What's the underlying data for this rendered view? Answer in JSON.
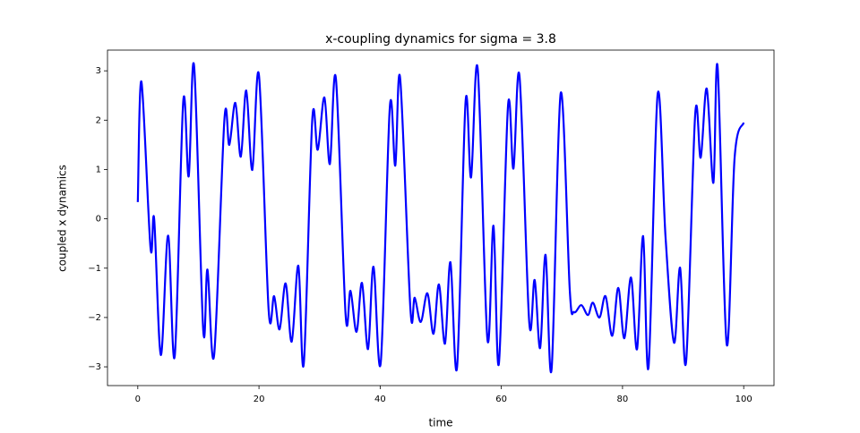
{
  "chart_data": {
    "type": "line",
    "title": "x-coupling dynamics for sigma = 3.8",
    "x_label": "time",
    "y_label": "coupled x dynamics",
    "xlim": [
      -5,
      105
    ],
    "ylim": [
      -3.38,
      3.42
    ],
    "xticks": [
      0,
      20,
      40,
      60,
      80,
      100
    ],
    "yticks": [
      {
        "value": -3,
        "label": "−3"
      },
      {
        "value": -2,
        "label": "−2"
      },
      {
        "value": -1,
        "label": "−1"
      },
      0,
      1,
      2,
      3
    ],
    "grid": false,
    "series": [
      {
        "color": "#0000ff",
        "x": [
          0,
          0.6,
          2.1,
          2.7,
          3.8,
          5.0,
          6.1,
          7.5,
          8.4,
          9.3,
          10.8,
          11.5,
          12.6,
          14.3,
          15.1,
          16.1,
          17.0,
          17.9,
          18.9,
          20.0,
          21.6,
          22.5,
          23.4,
          24.4,
          25.4,
          26.5,
          27.4,
          28.8,
          29.7,
          30.8,
          31.7,
          32.7,
          34.3,
          35.1,
          36.1,
          37.0,
          38.0,
          38.9,
          40.1,
          41.6,
          42.5,
          43.3,
          45.0,
          45.7,
          46.7,
          47.8,
          48.8,
          49.7,
          50.7,
          51.6,
          52.7,
          54.1,
          55.0,
          56.1,
          57.7,
          58.7,
          59.6,
          61.1,
          62.0,
          63.0,
          64.6,
          65.5,
          66.4,
          67.3,
          68.3,
          69.8,
          71.3,
          72.0,
          73.2,
          74.3,
          75.1,
          76.2,
          77.2,
          78.3,
          79.3,
          80.3,
          81.4,
          82.4,
          83.4,
          84.3,
          85.8,
          87.1,
          88.5,
          89.5,
          90.5,
          92.0,
          92.9,
          93.9,
          95.0,
          95.7,
          97.2,
          98.5,
          100
        ],
        "values": [
          0.34,
          2.78,
          -0.59,
          0.0,
          -2.76,
          -0.34,
          -2.78,
          2.38,
          0.86,
          3.09,
          -2.26,
          -1.03,
          -2.76,
          2.02,
          1.5,
          2.35,
          1.26,
          2.6,
          0.99,
          2.91,
          -1.86,
          -1.57,
          -2.24,
          -1.31,
          -2.49,
          -0.95,
          -2.93,
          2.02,
          1.4,
          2.46,
          1.11,
          2.84,
          -1.95,
          -1.46,
          -2.29,
          -1.3,
          -2.64,
          -0.97,
          -2.91,
          2.27,
          1.08,
          2.85,
          -1.84,
          -1.6,
          -2.09,
          -1.51,
          -2.33,
          -1.33,
          -2.53,
          -0.88,
          -3.0,
          2.38,
          0.84,
          3.04,
          -2.44,
          -0.14,
          -2.93,
          2.29,
          1.02,
          2.89,
          -2.09,
          -1.24,
          -2.62,
          -0.73,
          -3.04,
          2.55,
          -1.46,
          -1.89,
          -1.75,
          -1.95,
          -1.7,
          -2.0,
          -1.57,
          -2.37,
          -1.4,
          -2.42,
          -1.19,
          -2.64,
          -0.35,
          -3.0,
          2.53,
          -0.37,
          -2.51,
          -0.99,
          -2.89,
          2.13,
          1.24,
          2.64,
          0.73,
          3.07,
          -2.55,
          1.24,
          1.95
        ]
      }
    ]
  }
}
